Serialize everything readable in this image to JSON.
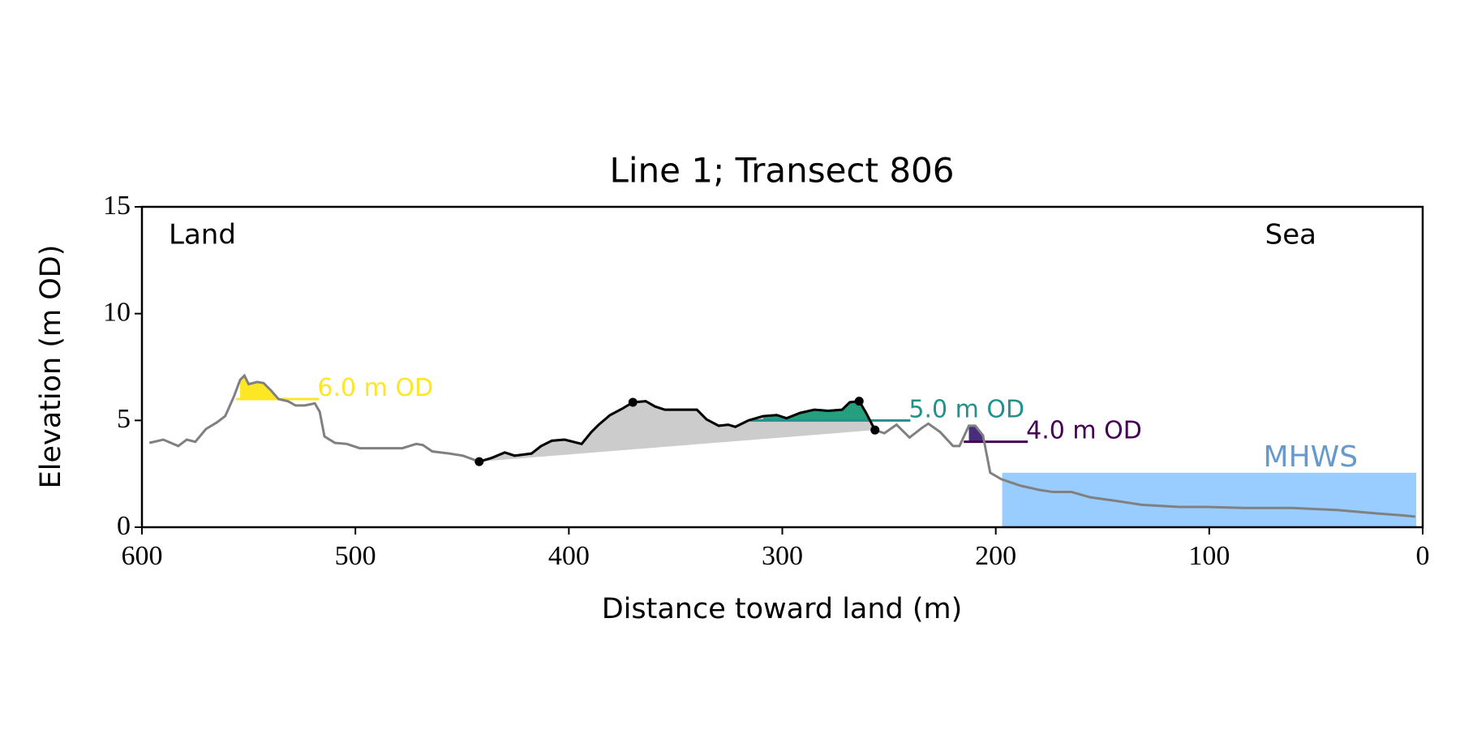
{
  "chart_data": {
    "type": "line",
    "title": "Line 1; Transect 806",
    "x_label": "Distance toward land (m)",
    "y_label": "Elevation (m OD)",
    "xlim": [
      600,
      0
    ],
    "xticks": [
      600,
      500,
      400,
      300,
      200,
      100,
      0
    ],
    "ylim": [
      0,
      15
    ],
    "yticks": [
      0,
      5,
      10,
      15
    ],
    "annotations": {
      "land": "Land",
      "sea": "Sea"
    },
    "profile": {
      "color": "#808080",
      "x": [
        596.5,
        590,
        583,
        579,
        575,
        570,
        565,
        561,
        557,
        554,
        552,
        550,
        546,
        543,
        539.5,
        536,
        531.6,
        528,
        523.7,
        519,
        516.7,
        514.5,
        509.6,
        504,
        498,
        491,
        478,
        471.5,
        468.4,
        464,
        456,
        449.6,
        442,
        436,
        430,
        425.4,
        417.5,
        413,
        408,
        402,
        394,
        389.5,
        386,
        380.7,
        375,
        370,
        364,
        359.6,
        355,
        348.7,
        340,
        335.5,
        329.8,
        325.4,
        322,
        315.8,
        309,
        302.6,
        298,
        291.7,
        285,
        278.5,
        272,
        268.4,
        264,
        261,
        256.6,
        252.2,
        246.5,
        240.4,
        234.6,
        231.6,
        226,
        220,
        217,
        212.6,
        209.6,
        206,
        202.6,
        197.4,
        188.6,
        179.8,
        173.3,
        164.5,
        155.7,
        144.7,
        131.6,
        114,
        101,
        83,
        61.4,
        39.5,
        22,
        9,
        3.5
      ],
      "values": [
        3.95,
        4.1,
        3.8,
        4.1,
        4.0,
        4.6,
        4.9,
        5.2,
        6.1,
        6.9,
        7.1,
        6.7,
        6.8,
        6.75,
        6.4,
        6.0,
        5.9,
        5.7,
        5.7,
        5.8,
        5.4,
        4.25,
        3.95,
        3.9,
        3.7,
        3.7,
        3.7,
        3.9,
        3.85,
        3.55,
        3.45,
        3.35,
        3.07,
        3.25,
        3.5,
        3.35,
        3.45,
        3.8,
        4.05,
        4.1,
        3.9,
        4.45,
        4.8,
        5.25,
        5.55,
        5.85,
        5.9,
        5.65,
        5.5,
        5.5,
        5.5,
        5.05,
        4.75,
        4.8,
        4.7,
        5.0,
        5.2,
        5.25,
        5.1,
        5.35,
        5.5,
        5.45,
        5.5,
        5.85,
        5.9,
        5.4,
        4.55,
        4.4,
        4.8,
        4.2,
        4.65,
        4.85,
        4.45,
        3.8,
        3.8,
        4.75,
        4.75,
        4.3,
        2.55,
        2.25,
        1.95,
        1.75,
        1.65,
        1.65,
        1.4,
        1.25,
        1.05,
        0.95,
        0.95,
        0.9,
        0.9,
        0.8,
        0.65,
        0.55,
        0.5
      ]
    },
    "section": {
      "color": "#000000",
      "fill": "#cccccc",
      "x": [
        442,
        370,
        264,
        256.6
      ],
      "values": [
        3.07,
        5.85,
        5.9,
        4.55
      ]
    },
    "levels": [
      {
        "label": "6.0 m OD",
        "value": 6,
        "color": "#fde725",
        "fill": "#fde725",
        "x": [
          556,
          517
        ]
      },
      {
        "label": "5.0 m OD",
        "value": 5,
        "color": "#21918c",
        "fill": "#25a07f",
        "x": [
          315,
          240
        ]
      },
      {
        "label": "4.0 m OD",
        "value": 4,
        "color": "#440154",
        "fill": "#472d7b",
        "x": [
          215,
          185
        ]
      }
    ],
    "mhws": {
      "label": "MHWS",
      "value": 2.55,
      "x": [
        197,
        3
      ],
      "color": "#99ccff",
      "label_color": "#6699cc"
    }
  }
}
